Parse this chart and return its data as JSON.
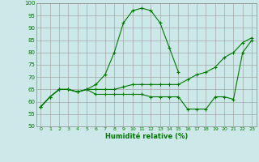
{
  "xlabel": "Humidité relative (%)",
  "background_color": "#cce8e8",
  "grid_color": "#aaaaaa",
  "line_color": "#007700",
  "x": [
    0,
    1,
    2,
    3,
    4,
    5,
    6,
    7,
    8,
    9,
    10,
    11,
    12,
    13,
    14,
    15,
    16,
    17,
    18,
    19,
    20,
    21,
    22,
    23
  ],
  "series1": [
    58,
    62,
    65,
    65,
    64,
    65,
    67,
    71,
    80,
    92,
    97,
    98,
    97,
    92,
    82,
    72,
    null,
    null,
    null,
    null,
    null,
    null,
    null,
    null
  ],
  "series2": [
    58,
    62,
    65,
    65,
    64,
    65,
    63,
    63,
    63,
    63,
    63,
    63,
    62,
    62,
    62,
    62,
    57,
    57,
    57,
    62,
    62,
    61,
    80,
    85
  ],
  "series3": [
    58,
    62,
    65,
    65,
    64,
    65,
    65,
    65,
    65,
    66,
    67,
    67,
    67,
    67,
    67,
    67,
    69,
    71,
    72,
    74,
    78,
    80,
    84,
    86
  ],
  "ylim": [
    50,
    100
  ],
  "xlim_min": -0.5,
  "xlim_max": 23.5,
  "yticks": [
    50,
    55,
    60,
    65,
    70,
    75,
    80,
    85,
    90,
    95,
    100
  ],
  "xtick_fontsize": 4.5,
  "ytick_fontsize": 5.0,
  "xlabel_fontsize": 6.0,
  "linewidth": 0.8,
  "markersize": 3.5
}
